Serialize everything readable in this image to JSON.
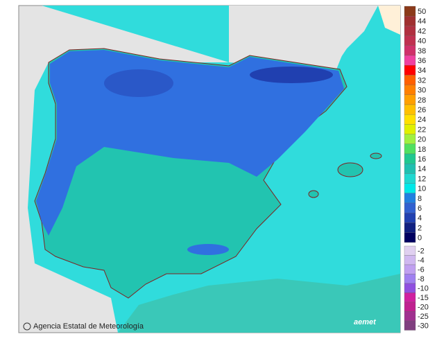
{
  "map": {
    "legend": {
      "positive": [
        {
          "value": 50,
          "color": "#8b3a1a"
        },
        {
          "value": 44,
          "color": "#a03030"
        },
        {
          "value": 42,
          "color": "#b03040"
        },
        {
          "value": 40,
          "color": "#c03050"
        },
        {
          "value": 38,
          "color": "#d0306a"
        },
        {
          "value": 36,
          "color": "#f040a0"
        },
        {
          "value": 34,
          "color": "#ff0000"
        },
        {
          "value": 32,
          "color": "#ff6000"
        },
        {
          "value": 30,
          "color": "#ff8000"
        },
        {
          "value": 28,
          "color": "#ffa000"
        },
        {
          "value": 26,
          "color": "#ffc000"
        },
        {
          "value": 24,
          "color": "#ffe000"
        },
        {
          "value": 22,
          "color": "#e0f000"
        },
        {
          "value": 20,
          "color": "#a0f040"
        },
        {
          "value": 18,
          "color": "#50e060"
        },
        {
          "value": 16,
          "color": "#20c890"
        },
        {
          "value": 14,
          "color": "#20c0b0"
        },
        {
          "value": 12,
          "color": "#20d8d0"
        },
        {
          "value": 10,
          "color": "#00e8e8"
        },
        {
          "value": 8,
          "color": "#2080e0"
        },
        {
          "value": 6,
          "color": "#3060d0"
        },
        {
          "value": 4,
          "color": "#2040b0"
        },
        {
          "value": 2,
          "color": "#102080"
        },
        {
          "value": 0,
          "color": "#000060"
        }
      ],
      "negative": [
        {
          "value": -2,
          "color": "#e0d0f0"
        },
        {
          "value": -4,
          "color": "#d0b8f0"
        },
        {
          "value": -6,
          "color": "#c0a0f0"
        },
        {
          "value": -8,
          "color": "#a080f0"
        },
        {
          "value": -10,
          "color": "#9050e0"
        },
        {
          "value": -15,
          "color": "#d020a0"
        },
        {
          "value": -20,
          "color": "#c02090"
        },
        {
          "value": -25,
          "color": "#a03090"
        },
        {
          "value": -30,
          "color": "#804080"
        }
      ]
    },
    "credit": "Agencia Estatal de Meteorología",
    "logo": "aemet"
  }
}
